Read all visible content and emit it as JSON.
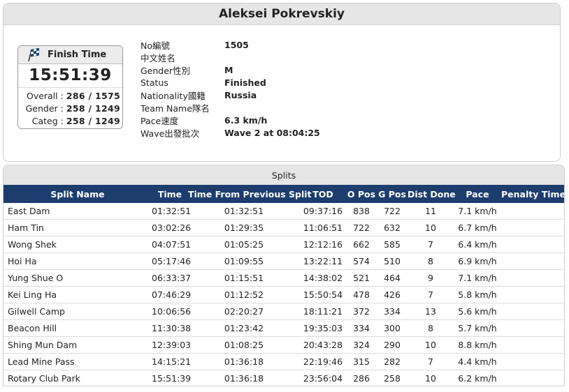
{
  "runner": {
    "name": "Aleksei Pokrevskiy"
  },
  "finish": {
    "title": "Finish Time",
    "time": "15:51:39",
    "rankings": [
      {
        "label": "Overall :",
        "value": "286 / 1575"
      },
      {
        "label": "Gender :",
        "value": "258 / 1249"
      },
      {
        "label": "Categ :",
        "value": "258 / 1249"
      }
    ]
  },
  "info": [
    {
      "label": "No編號",
      "value": "1505"
    },
    {
      "label": "中文姓名",
      "value": ""
    },
    {
      "label": "Gender性別",
      "value": "M"
    },
    {
      "label": "Status",
      "value": "Finished"
    },
    {
      "label": "Nationality國籍",
      "value": "Russia"
    },
    {
      "label": "Team Name隊名",
      "value": ""
    },
    {
      "label": "Pace速度",
      "value": "6.3 km/h"
    },
    {
      "label": "Wave出發批次",
      "value": "Wave 2 at 08:04:25"
    }
  ],
  "splits": {
    "title": "Splits",
    "columns": [
      "Split Name",
      "Time",
      "Time From Previous Split",
      "TOD",
      "O Pos",
      "G Pos",
      "Dist Done",
      "Pace",
      "Penalty Time"
    ],
    "rows": [
      [
        "East Dam",
        "01:32:51",
        "01:32:51",
        "09:37:16",
        "838",
        "722",
        "11",
        "7.1 km/h",
        ""
      ],
      [
        "Ham Tin",
        "03:02:26",
        "01:29:35",
        "11:06:51",
        "722",
        "632",
        "10",
        "6.7 km/h",
        ""
      ],
      [
        "Wong Shek",
        "04:07:51",
        "01:05:25",
        "12:12:16",
        "662",
        "585",
        "7",
        "6.4 km/h",
        ""
      ],
      [
        "Hoi Ha",
        "05:17:46",
        "01:09:55",
        "13:22:11",
        "574",
        "510",
        "8",
        "6.9 km/h",
        ""
      ],
      [
        "Yung Shue O",
        "06:33:37",
        "01:15:51",
        "14:38:02",
        "521",
        "464",
        "9",
        "7.1 km/h",
        ""
      ],
      [
        "Kei Ling Ha",
        "07:46:29",
        "01:12:52",
        "15:50:54",
        "478",
        "426",
        "7",
        "5.8 km/h",
        ""
      ],
      [
        "Gilwell Camp",
        "10:06:56",
        "02:20:27",
        "18:11:21",
        "372",
        "334",
        "13",
        "5.6 km/h",
        ""
      ],
      [
        "Beacon Hill",
        "11:30:38",
        "01:23:42",
        "19:35:03",
        "334",
        "300",
        "8",
        "5.7 km/h",
        ""
      ],
      [
        "Shing Mun Dam",
        "12:39:03",
        "01:08:25",
        "20:43:28",
        "324",
        "290",
        "10",
        "8.8 km/h",
        ""
      ],
      [
        "Lead Mine Pass",
        "14:15:21",
        "01:36:18",
        "22:19:46",
        "315",
        "282",
        "7",
        "4.4 km/h",
        ""
      ],
      [
        "Rotary Club Park",
        "15:51:39",
        "01:36:18",
        "23:56:04",
        "286",
        "258",
        "10",
        "6.2 km/h",
        ""
      ]
    ]
  },
  "colors": {
    "header_bg": "#1c3d6e",
    "bar_bg": "#e6e6e6"
  },
  "icons": {
    "finish": "checkered-flag-icon"
  }
}
